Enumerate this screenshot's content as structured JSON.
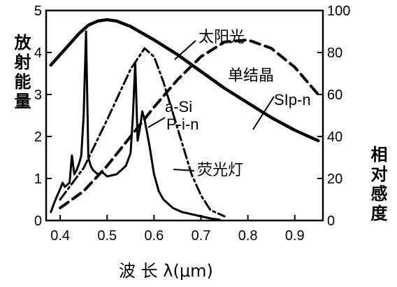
{
  "chart_data": {
    "type": "line",
    "xlabel": "波 长 λ(μm)",
    "ylabel_left": "放射能量",
    "ylabel_right": "相对感度",
    "xlim": [
      0.37,
      0.96
    ],
    "ylim_left": [
      0,
      5
    ],
    "ylim_right": [
      0,
      100
    ],
    "x_ticks": [
      "0.4",
      "0.5",
      "0.6",
      "0.7",
      "0.8",
      "0.9"
    ],
    "y_ticks_left": [
      "0",
      "1",
      "2",
      "3",
      "4",
      "5"
    ],
    "y_ticks_right": [
      "0",
      "20",
      "40",
      "60",
      "80",
      "100"
    ],
    "series": [
      {
        "name": "太阳光",
        "style": "solid-thick",
        "axis": "left",
        "x": [
          0.38,
          0.4,
          0.42,
          0.44,
          0.46,
          0.48,
          0.5,
          0.52,
          0.55,
          0.6,
          0.65,
          0.7,
          0.75,
          0.8,
          0.85,
          0.9,
          0.95
        ],
        "y": [
          3.7,
          3.95,
          4.2,
          4.45,
          4.65,
          4.75,
          4.78,
          4.75,
          4.62,
          4.3,
          3.95,
          3.55,
          3.15,
          2.8,
          2.45,
          2.15,
          1.9
        ]
      },
      {
        "name": "荧光灯",
        "style": "solid",
        "axis": "left",
        "x": [
          0.38,
          0.39,
          0.4,
          0.405,
          0.41,
          0.42,
          0.425,
          0.43,
          0.435,
          0.44,
          0.445,
          0.45,
          0.455,
          0.46,
          0.465,
          0.47,
          0.48,
          0.49,
          0.5,
          0.52,
          0.54,
          0.55,
          0.555,
          0.56,
          0.565,
          0.57,
          0.575,
          0.58,
          0.59,
          0.6,
          0.61,
          0.62,
          0.64,
          0.66,
          0.68,
          0.7,
          0.72,
          0.74
        ],
        "y": [
          0.2,
          0.5,
          0.75,
          0.9,
          0.8,
          0.9,
          1.55,
          1.1,
          1.2,
          1.35,
          1.55,
          2.5,
          4.5,
          1.5,
          1.3,
          1.2,
          1.1,
          1.15,
          1.05,
          1.1,
          1.3,
          1.6,
          2.5,
          3.75,
          1.9,
          2.2,
          2.6,
          2.4,
          1.8,
          1.1,
          0.7,
          0.5,
          0.3,
          0.2,
          0.15,
          0.1,
          0.05,
          0.02
        ]
      },
      {
        "name": "单结晶 SIp-n",
        "style": "dashed",
        "axis": "right",
        "x": [
          0.4,
          0.45,
          0.5,
          0.55,
          0.6,
          0.65,
          0.7,
          0.75,
          0.8,
          0.85,
          0.9,
          0.95
        ],
        "y": [
          6,
          14,
          26,
          40,
          54,
          67,
          78,
          85,
          86,
          82,
          73,
          60
        ]
      },
      {
        "name": "a-Si P-i-n",
        "style": "dash-dot",
        "axis": "right",
        "x": [
          0.4,
          0.45,
          0.5,
          0.55,
          0.58,
          0.6,
          0.62,
          0.65,
          0.68,
          0.7,
          0.72,
          0.75
        ],
        "y": [
          10,
          25,
          48,
          72,
          82,
          78,
          66,
          44,
          22,
          12,
          5,
          2
        ]
      }
    ],
    "annotations": [
      "太阳光",
      "单结晶",
      "SIp-n",
      "a-Si",
      "P-i-n",
      "荧光灯"
    ]
  }
}
